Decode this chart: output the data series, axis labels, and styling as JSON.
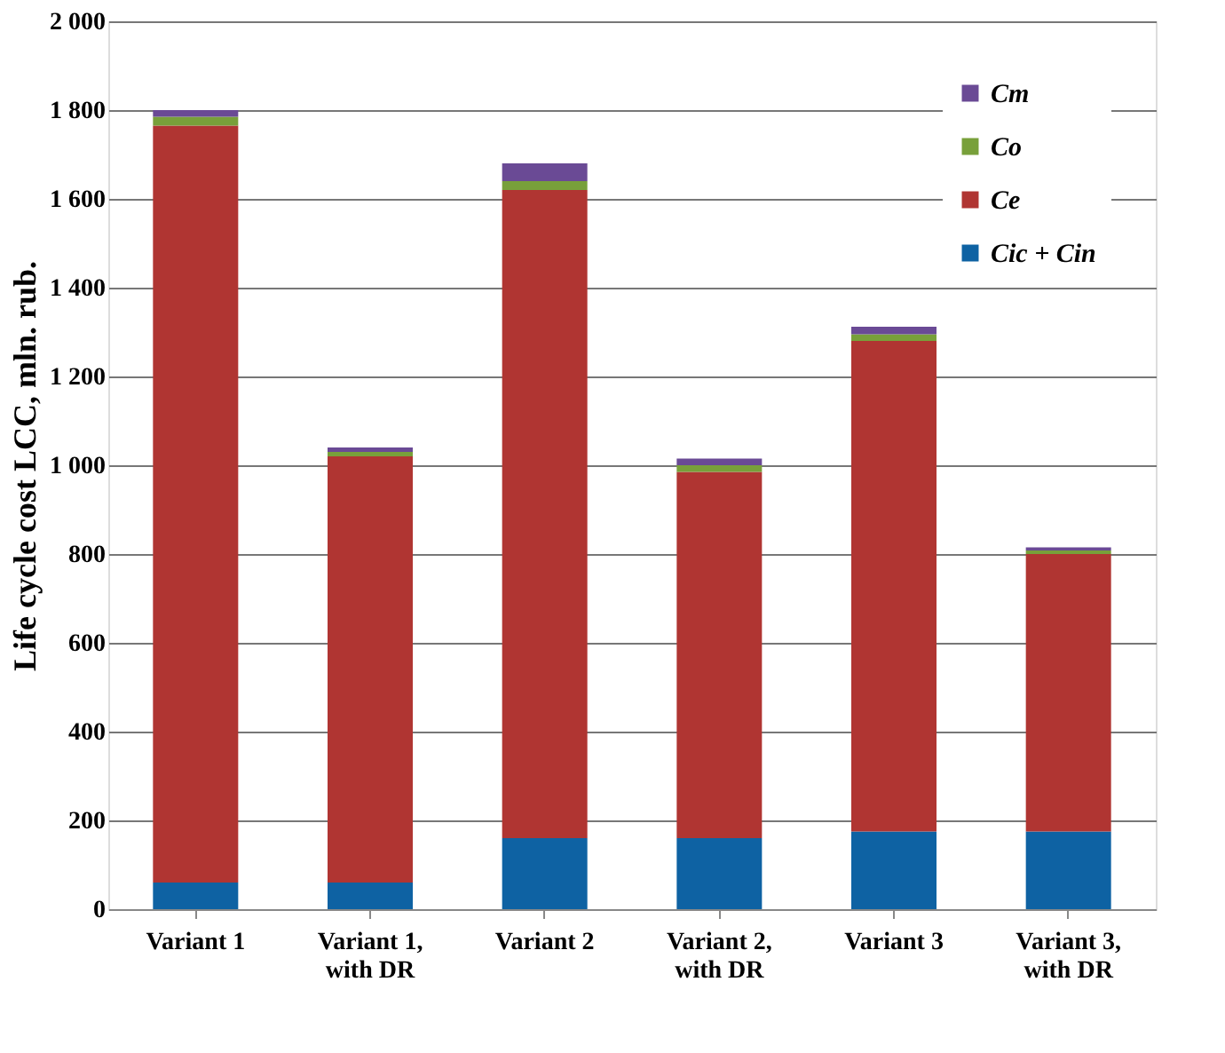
{
  "chart_data": {
    "type": "bar",
    "stacked": true,
    "ylabel": "Life cycle cost LCC, mln. rub.",
    "categories": [
      "Variant 1",
      "Variant 1, with DR",
      "Variant 2",
      "Variant 2, with DR",
      "Variant 3",
      "Variant 3, with DR"
    ],
    "series": [
      {
        "name": "Cic + Cin",
        "color": "#0e62a3",
        "values": [
          60,
          60,
          160,
          160,
          175,
          175
        ]
      },
      {
        "name": "Ce",
        "color": "#b03532",
        "values": [
          1705,
          960,
          1460,
          825,
          1105,
          625
        ]
      },
      {
        "name": "Co",
        "color": "#78a03a",
        "values": [
          20,
          10,
          20,
          15,
          15,
          8
        ]
      },
      {
        "name": "Cm",
        "color": "#6a4a95",
        "values": [
          15,
          10,
          40,
          15,
          17,
          7
        ]
      }
    ],
    "ylim": [
      0,
      2000
    ],
    "yticks": [
      0,
      200,
      400,
      600,
      800,
      {
        "value": 1000,
        "label": "1 000"
      },
      {
        "value": 1200,
        "label": "1 200"
      },
      {
        "value": 1400,
        "label": "1 400"
      },
      {
        "value": 1600,
        "label": "1 600"
      },
      {
        "value": 1800,
        "label": "1 800"
      },
      {
        "value": 2000,
        "label": "2 000"
      }
    ],
    "grid": "y",
    "legend": "top right"
  }
}
